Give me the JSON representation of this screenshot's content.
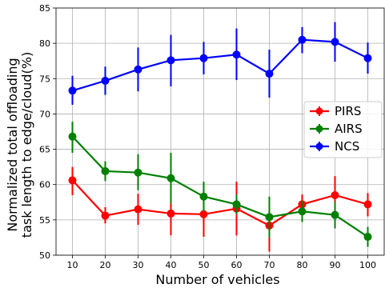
{
  "chart_data": {
    "type": "line",
    "xlabel": "Number of vehicles",
    "ylabel": [
      "Normalized total offloading",
      "task length to edge/cloud(%)"
    ],
    "x": [
      10,
      20,
      30,
      40,
      50,
      60,
      70,
      80,
      90,
      100
    ],
    "xlim": [
      5,
      105
    ],
    "ylim": [
      50,
      85
    ],
    "xticks": [
      10,
      20,
      30,
      40,
      50,
      60,
      70,
      80,
      90,
      100
    ],
    "yticks": [
      50,
      55,
      60,
      65,
      70,
      75,
      80,
      85
    ],
    "grid": true,
    "legend_position": "center-right",
    "series": [
      {
        "name": "PIRS",
        "color": "#ff0000",
        "values": [
          60.6,
          55.6,
          56.5,
          55.9,
          55.8,
          56.6,
          54.2,
          57.2,
          58.5,
          57.2
        ],
        "err_low": [
          58.5,
          54.5,
          54.3,
          52.8,
          52.6,
          52.8,
          50.5,
          56.0,
          55.5,
          55.5
        ],
        "err_high": [
          62.5,
          56.8,
          58.7,
          59.0,
          59.0,
          60.4,
          55.6,
          58.6,
          61.2,
          58.8
        ]
      },
      {
        "name": "AIRS",
        "color": "#008000",
        "values": [
          66.8,
          61.9,
          61.7,
          60.9,
          58.3,
          57.2,
          55.4,
          56.2,
          55.7,
          52.6
        ],
        "err_low": [
          64.5,
          60.5,
          59.2,
          57.3,
          56.2,
          55.8,
          52.5,
          54.7,
          53.8,
          51.2
        ],
        "err_high": [
          68.9,
          63.3,
          64.3,
          64.5,
          60.4,
          58.6,
          58.3,
          57.7,
          57.6,
          54.0
        ]
      },
      {
        "name": "NCS",
        "color": "#0000ff",
        "values": [
          73.3,
          74.7,
          76.3,
          77.6,
          77.9,
          78.4,
          75.7,
          80.5,
          80.2,
          77.9
        ],
        "err_low": [
          71.3,
          72.7,
          73.2,
          73.9,
          75.6,
          74.8,
          72.3,
          78.6,
          77.4,
          75.7
        ],
        "err_high": [
          75.4,
          76.7,
          79.4,
          81.2,
          80.2,
          82.1,
          79.1,
          82.3,
          83.0,
          80.1
        ]
      }
    ]
  }
}
